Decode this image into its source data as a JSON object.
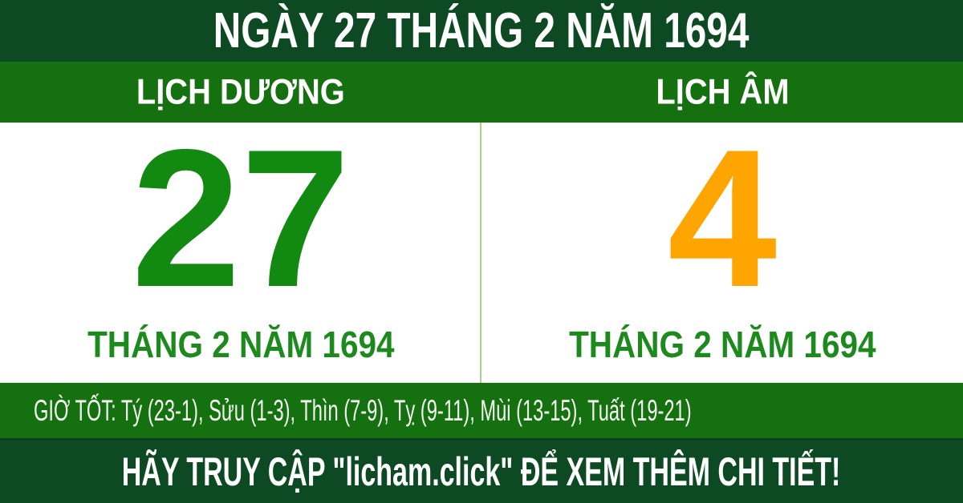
{
  "header": {
    "title": "NGÀY 27 THÁNG 2 NĂM 1694"
  },
  "columns": {
    "solar": {
      "label": "LỊCH DƯƠNG",
      "day": "27",
      "month_year": "THÁNG 2 NĂM 1694"
    },
    "lunar": {
      "label": "LỊCH ÂM",
      "day": "4",
      "month_year": "THÁNG 2 NĂM 1694"
    }
  },
  "good_hours": {
    "text": "GIỜ TỐT: Tý (23-1), Sửu (1-3), Thìn (7-9), Tỵ (9-11), Mùi (13-15), Tuất (19-21)"
  },
  "footer": {
    "text": "HÃY TRUY CẬP \"licham.click\" ĐỂ XEM THÊM CHI TIẾT!"
  },
  "colors": {
    "dark_green": "#0d4a23",
    "bar_green": "#15700f",
    "solar_day_green": "#128a12",
    "lunar_day_orange": "#ffa502",
    "month_label_green": "#1c8a1c",
    "divider_light_green": "#a9d18e",
    "text_white": "#ffffff"
  }
}
